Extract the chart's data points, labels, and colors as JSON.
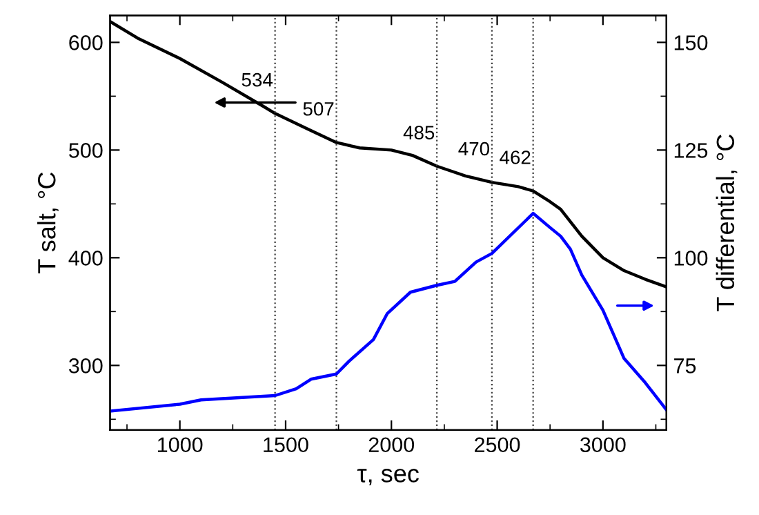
{
  "chart_data": {
    "type": "line",
    "xlabel": "τ, sec",
    "ylabel": "T salt, °C",
    "y2label": "T differential, °C",
    "xlim": [
      670,
      3300
    ],
    "xticks": [
      1000,
      1500,
      2000,
      2500,
      3000
    ],
    "ylim": [
      240,
      625
    ],
    "yticks": [
      300,
      400,
      500,
      600
    ],
    "y2lim": [
      60,
      156.25
    ],
    "y2ticks": [
      75,
      100,
      125,
      150
    ],
    "grid": false,
    "legend": false,
    "marker": "none",
    "line_style": "solid",
    "series": [
      {
        "color": "#000000",
        "x": [
          673,
          800,
          1000,
          1200,
          1400,
          1450,
          1600,
          1740,
          1850,
          2000,
          2100,
          2215,
          2350,
          2475,
          2600,
          2670,
          2750,
          2800,
          2900,
          3000,
          3100,
          3200,
          3300
        ],
        "values": [
          619,
          604,
          585,
          563,
          540,
          534,
          520,
          507,
          502,
          500,
          495,
          485,
          476,
          470,
          466,
          462,
          452,
          445,
          420,
          400,
          388,
          380,
          373
        ]
      },
      {
        "color": "#0000ff",
        "axis": "y2",
        "x": [
          673,
          1000,
          1100,
          1450,
          1550,
          1620,
          1740,
          1800,
          1915,
          1980,
          2090,
          2215,
          2300,
          2400,
          2475,
          2670,
          2750,
          2800,
          2846,
          2900,
          3000,
          3100,
          3200,
          3300
        ],
        "values": [
          64.4,
          66,
          67,
          68,
          69.6,
          71.8,
          73,
          76,
          81,
          87,
          92,
          93.6,
          94.5,
          99,
          101,
          110.3,
          107,
          105,
          102,
          96,
          87.8,
          76.6,
          71,
          64.7
        ]
      }
    ],
    "ref_lines": [
      {
        "axis": "x",
        "value": 1450,
        "color": "#404040",
        "line_style": "dotted"
      },
      {
        "axis": "x",
        "value": 1740,
        "color": "#404040",
        "line_style": "dotted"
      },
      {
        "axis": "x",
        "value": 2215,
        "color": "#404040",
        "line_style": "dotted"
      },
      {
        "axis": "x",
        "value": 2475,
        "color": "#404040",
        "line_style": "dotted"
      },
      {
        "axis": "x",
        "value": 2670,
        "color": "#404040",
        "line_style": "dotted"
      }
    ],
    "annotations": [
      {
        "text": "534",
        "x": 1450,
        "y": 534
      },
      {
        "text": "507",
        "x": 1740,
        "y": 507
      },
      {
        "text": "485",
        "x": 2215,
        "y": 485
      },
      {
        "text": "470",
        "x": 2475,
        "y": 470
      },
      {
        "text": "462",
        "x": 2670,
        "y": 462
      }
    ]
  }
}
